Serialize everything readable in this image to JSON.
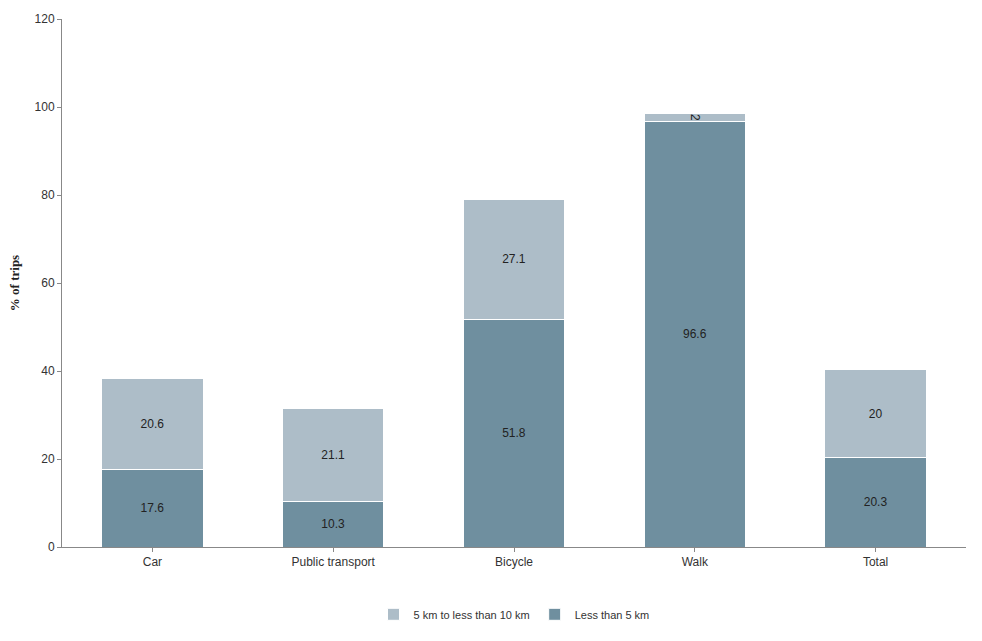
{
  "chart_data": {
    "type": "bar",
    "stacked": true,
    "data_labels": true,
    "grid": false,
    "legend": "bottom",
    "y_label": "% of trips",
    "categories": [
      "Car",
      "Public transport",
      "Bicycle",
      "Walk",
      "Total"
    ],
    "series": [
      {
        "name": "Less than 5 km",
        "color": "#6f8f9f",
        "values": [
          17.6,
          10.3,
          51.8,
          96.6,
          20.3
        ]
      },
      {
        "name": "5 km to less than 10 km",
        "color": "#adbdc8",
        "values": [
          20.6,
          21.1,
          27.1,
          2,
          20
        ]
      }
    ],
    "ylim": [
      0,
      120
    ],
    "yticks": [
      0,
      20,
      40,
      60,
      80,
      100,
      120
    ]
  }
}
